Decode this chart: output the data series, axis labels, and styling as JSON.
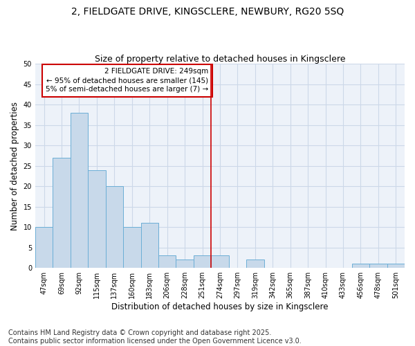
{
  "title_line1": "2, FIELDGATE DRIVE, KINGSCLERE, NEWBURY, RG20 5SQ",
  "title_line2": "Size of property relative to detached houses in Kingsclere",
  "xlabel": "Distribution of detached houses by size in Kingsclere",
  "ylabel": "Number of detached properties",
  "categories": [
    "47sqm",
    "69sqm",
    "92sqm",
    "115sqm",
    "137sqm",
    "160sqm",
    "183sqm",
    "206sqm",
    "228sqm",
    "251sqm",
    "274sqm",
    "297sqm",
    "319sqm",
    "342sqm",
    "365sqm",
    "387sqm",
    "410sqm",
    "433sqm",
    "456sqm",
    "478sqm",
    "501sqm"
  ],
  "values": [
    10,
    27,
    38,
    24,
    20,
    10,
    11,
    3,
    2,
    3,
    3,
    0,
    2,
    0,
    0,
    0,
    0,
    0,
    1,
    1,
    1
  ],
  "bar_color": "#c8d9ea",
  "bar_edge_color": "#6baed6",
  "grid_color": "#ccd8e8",
  "background_color": "#edf2f9",
  "vline_x_index": 9,
  "vline_color": "#cc0000",
  "annotation_title": "2 FIELDGATE DRIVE: 249sqm",
  "annotation_line1": "← 95% of detached houses are smaller (145)",
  "annotation_line2": "5% of semi-detached houses are larger (7) →",
  "annotation_box_color": "#cc0000",
  "ylim": [
    0,
    50
  ],
  "yticks": [
    0,
    5,
    10,
    15,
    20,
    25,
    30,
    35,
    40,
    45,
    50
  ],
  "footnote_line1": "Contains HM Land Registry data © Crown copyright and database right 2025.",
  "footnote_line2": "Contains public sector information licensed under the Open Government Licence v3.0.",
  "footnote_fontsize": 7,
  "title_fontsize1": 10,
  "title_fontsize2": 9,
  "tick_fontsize": 7,
  "label_fontsize": 8.5
}
